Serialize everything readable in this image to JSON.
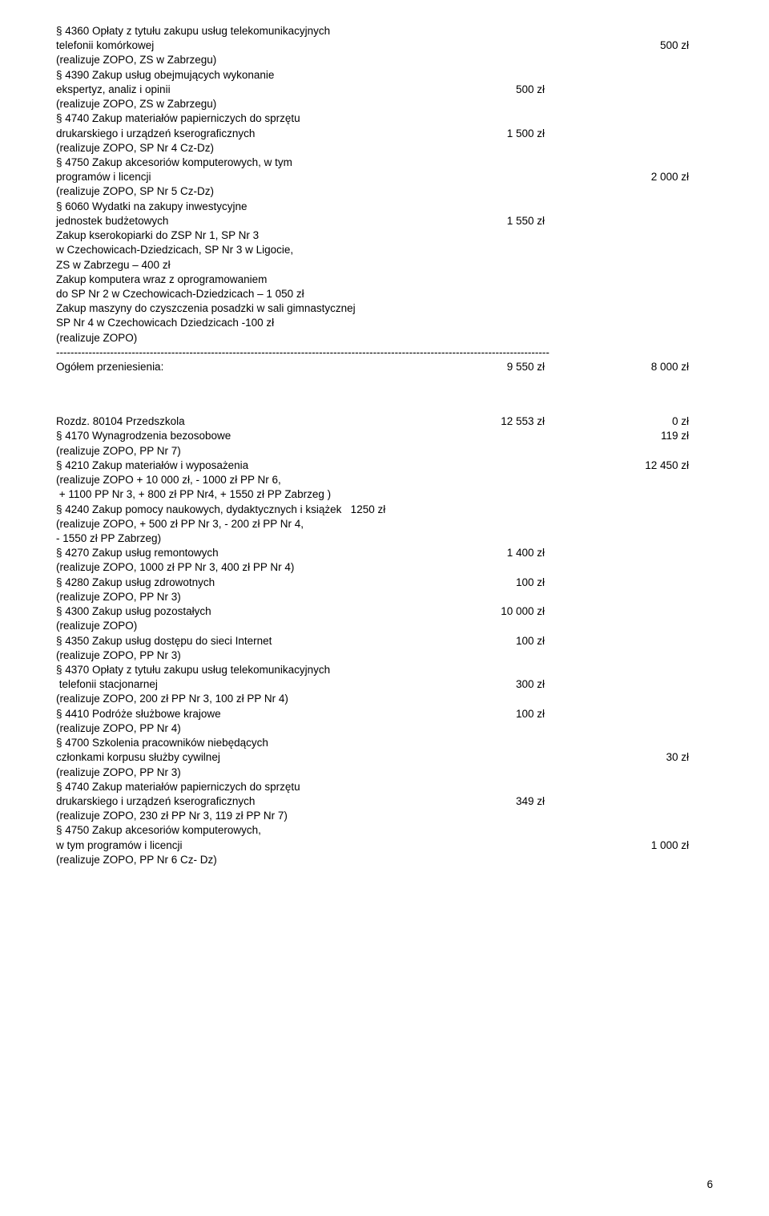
{
  "section1": {
    "lines": [
      {
        "t": "§ 4360 Opłaty z tytułu zakupu usług telekomunikacyjnych"
      },
      {
        "t": "telefonii komórkowej",
        "r": "500 zł"
      },
      {
        "t": "(realizuje ZOPO, ZS w Zabrzegu)"
      },
      {
        "t": "§ 4390 Zakup usług obejmujących wykonanie"
      },
      {
        "t": "ekspertyz, analiz i opinii",
        "m": "500 zł"
      },
      {
        "t": "(realizuje ZOPO, ZS w Zabrzegu)"
      },
      {
        "t": "§ 4740 Zakup materiałów papierniczych do sprzętu"
      },
      {
        "t": "drukarskiego i urządzeń kserograficznych",
        "m": "1 500 zł"
      },
      {
        "t": "(realizuje ZOPO, SP Nr 4 Cz-Dz)"
      },
      {
        "t": "§ 4750 Zakup akcesoriów komputerowych, w tym"
      },
      {
        "t": "programów i licencji",
        "r": "2 000 zł"
      },
      {
        "t": "(realizuje ZOPO, SP Nr 5 Cz-Dz)"
      },
      {
        "t": "§ 6060 Wydatki na zakupy inwestycyjne"
      },
      {
        "t": "jednostek budżetowych",
        "m": "1 550 zł"
      },
      {
        "t": "Zakup kserokopiarki do ZSP Nr 1, SP Nr 3"
      },
      {
        "t": "w Czechowicach-Dziedzicach, SP Nr 3 w Ligocie,"
      },
      {
        "t": "ZS w Zabrzegu – 400 zł"
      },
      {
        "t": "Zakup komputera wraz z oprogramowaniem"
      },
      {
        "t": "do SP Nr 2 w Czechowicach-Dziedzicach – 1 050 zł"
      },
      {
        "t": "Zakup maszyny do czyszczenia posadzki w sali gimnastycznej"
      },
      {
        "t": "SP Nr 4 w Czechowicach Dziedzicach -100 zł"
      },
      {
        "t": "(realizuje ZOPO)"
      }
    ],
    "dashes": "-----------------------------------------------------------------------------------------------------------------------------------------",
    "total": {
      "t": "Ogółem przeniesienia:",
      "m": "9 550 zł",
      "r": "8 000 zł"
    }
  },
  "section2": {
    "header": {
      "t": "Rozdz. 80104 Przedszkola",
      "m": "12 553 zł",
      "r": "0 zł"
    },
    "lines": [
      {
        "t": "§ 4170 Wynagrodzenia bezosobowe",
        "r": "119 zł"
      },
      {
        "t": "(realizuje ZOPO, PP Nr 7)"
      },
      {
        "t": "§ 4210 Zakup materiałów i wyposażenia",
        "r": "12 450 zł"
      },
      {
        "t": "(realizuje ZOPO + 10 000 zł, - 1000 zł PP Nr 6,"
      },
      {
        "t": " + 1100 PP Nr 3, + 800 zł PP Nr4, + 1550 zł PP Zabrzeg )"
      },
      {
        "t": "§ 4240 Zakup pomocy naukowych, dydaktycznych i książek   1250 zł"
      },
      {
        "t": "(realizuje ZOPO, + 500 zł PP Nr 3, - 200 zł PP Nr 4,"
      },
      {
        "t": "- 1550 zł PP Zabrzeg)"
      },
      {
        "t": "§ 4270 Zakup usług remontowych",
        "m": "1 400 zł"
      },
      {
        "t": "(realizuje ZOPO, 1000 zł PP Nr 3, 400 zł PP Nr 4)"
      },
      {
        "t": "§ 4280 Zakup usług zdrowotnych",
        "m": "100 zł"
      },
      {
        "t": "(realizuje ZOPO, PP Nr 3)"
      },
      {
        "t": "§ 4300 Zakup usług pozostałych",
        "m": "10 000 zł"
      },
      {
        "t": "(realizuje ZOPO)"
      },
      {
        "t": "§ 4350 Zakup usług dostępu do sieci Internet",
        "m": "100 zł"
      },
      {
        "t": "(realizuje ZOPO, PP Nr 3)"
      },
      {
        "t": "§ 4370 Opłaty z tytułu zakupu usług telekomunikacyjnych"
      },
      {
        "t": " telefonii stacjonarnej",
        "m": "300 zł"
      },
      {
        "t": "(realizuje ZOPO, 200 zł PP Nr 3, 100 zł PP Nr 4)"
      },
      {
        "t": "§ 4410 Podróże służbowe krajowe",
        "m": "100 zł"
      },
      {
        "t": "(realizuje ZOPO, PP Nr 4)"
      },
      {
        "t": "§ 4700 Szkolenia pracowników niebędących"
      },
      {
        "t": "członkami korpusu służby cywilnej",
        "r": "30 zł"
      },
      {
        "t": "(realizuje ZOPO, PP Nr 3)"
      },
      {
        "t": "§ 4740 Zakup materiałów papierniczych do sprzętu"
      },
      {
        "t": "drukarskiego i urządzeń kserograficznych",
        "m": "349 zł"
      },
      {
        "t": "(realizuje ZOPO, 230 zł PP Nr 3, 119 zł PP Nr 7)"
      },
      {
        "t": "§ 4750 Zakup akcesoriów komputerowych,"
      },
      {
        "t": "w tym programów i licencji",
        "r": "1 000 zł"
      },
      {
        "t": "(realizuje ZOPO, PP Nr 6 Cz- Dz)"
      }
    ]
  },
  "page_number": "6"
}
